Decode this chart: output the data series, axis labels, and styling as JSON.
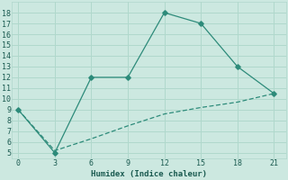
{
  "x": [
    0,
    3,
    6,
    9,
    12,
    15,
    18,
    21
  ],
  "y_line1": [
    9,
    5,
    12,
    12,
    18,
    17,
    13,
    10.5
  ],
  "y_line2": [
    9,
    5.2,
    6.3,
    7.5,
    8.6,
    9.2,
    9.7,
    10.5
  ],
  "line_color": "#2d8b7a",
  "bg_color": "#cce8e0",
  "grid_color": "#b0d8cc",
  "xlabel": "Humidex (Indice chaleur)",
  "xlim": [
    -0.5,
    22
  ],
  "ylim": [
    4.5,
    19
  ],
  "xticks": [
    0,
    3,
    6,
    9,
    12,
    15,
    18,
    21
  ],
  "yticks": [
    5,
    6,
    7,
    8,
    9,
    10,
    11,
    12,
    13,
    14,
    15,
    16,
    17,
    18
  ]
}
